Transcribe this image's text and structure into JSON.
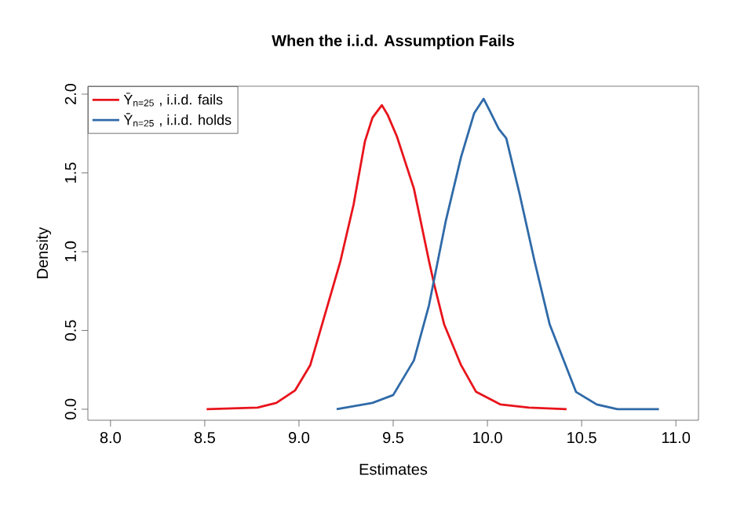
{
  "chart_data": {
    "type": "line",
    "title": "When the i.i.d. Assumption Fails",
    "xlabel": "Estimates",
    "ylabel": "Density",
    "xlim": [
      7.88,
      11.12
    ],
    "ylim": [
      -0.07,
      2.05
    ],
    "xticks": [
      {
        "value": 8,
        "label": "8.0"
      },
      {
        "value": 8.5,
        "label": "8.5"
      },
      {
        "value": 9,
        "label": "9.0"
      },
      {
        "value": 9.5,
        "label": "9.5"
      },
      {
        "value": 10,
        "label": "10.0"
      },
      {
        "value": 10.5,
        "label": "10.5"
      },
      {
        "value": 11,
        "label": "11.0"
      }
    ],
    "yticks": [
      {
        "value": 0,
        "label": "0.0"
      },
      {
        "value": 0.5,
        "label": "0.5"
      },
      {
        "value": 1,
        "label": "1.0"
      },
      {
        "value": 1.5,
        "label": "1.5"
      },
      {
        "value": 2,
        "label": "2.0"
      }
    ],
    "grid": false,
    "legend": "top left",
    "marker": "none",
    "line_style": "solid",
    "series": [
      {
        "name": "Ȳ$_{n=25}$ , i.i.d. fails",
        "color": "#e8141c",
        "x": [
          8.51,
          8.78,
          8.88,
          8.98,
          9.06,
          9.14,
          9.22,
          9.29,
          9.35,
          9.39,
          9.44,
          9.47,
          9.52,
          9.61,
          9.69,
          9.72,
          9.77,
          9.86,
          9.94,
          10.07,
          10.22,
          10.42
        ],
        "values": [
          0,
          0.01,
          0.04,
          0.12,
          0.28,
          0.61,
          0.94,
          1.3,
          1.7,
          1.85,
          1.93,
          1.87,
          1.73,
          1.4,
          0.94,
          0.78,
          0.54,
          0.28,
          0.11,
          0.03,
          0.01,
          0
        ]
      },
      {
        "name": "Ȳ$_{n=25}$ , i.i.d. holds",
        "color": "#2f6aa8",
        "x": [
          9.2,
          9.39,
          9.5,
          9.61,
          9.69,
          9.78,
          9.86,
          9.93,
          9.98,
          10.01,
          10.06,
          10.1,
          10.17,
          10.25,
          10.33,
          10.47,
          10.58,
          10.69,
          10.91
        ],
        "values": [
          0,
          0.04,
          0.09,
          0.31,
          0.66,
          1.2,
          1.6,
          1.88,
          1.97,
          1.9,
          1.78,
          1.72,
          1.37,
          0.94,
          0.54,
          0.11,
          0.03,
          0,
          0
        ]
      }
    ]
  }
}
